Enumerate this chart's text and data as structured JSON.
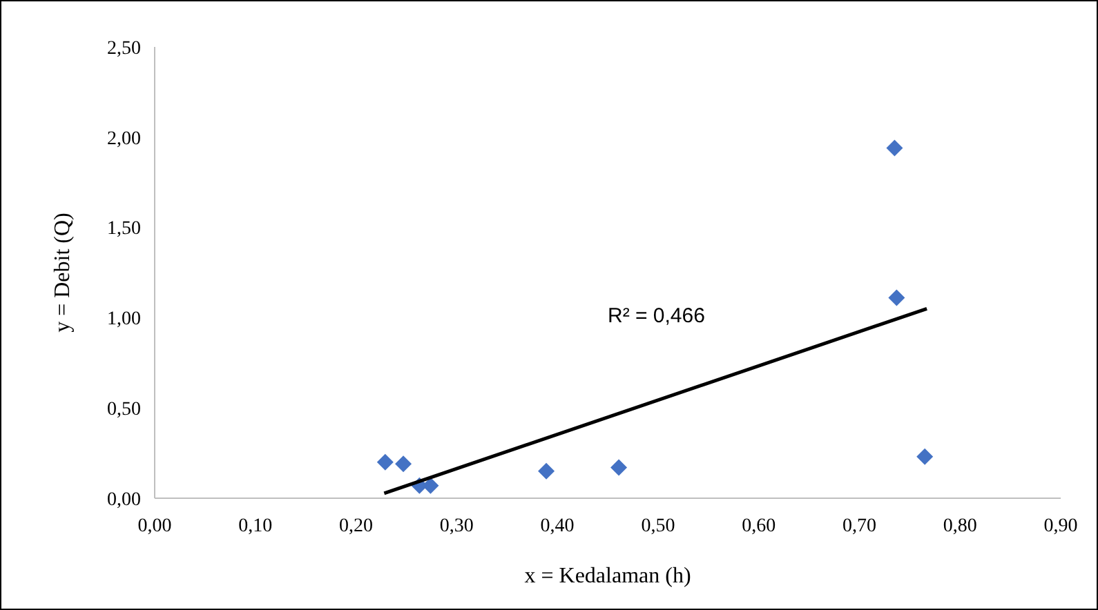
{
  "chart_data": {
    "type": "scatter",
    "xlabel": "x = Kedalaman (h)",
    "ylabel": "y = Debit (Q)",
    "marker": "diamond",
    "grid": false,
    "xlim": [
      0,
      0.9
    ],
    "ylim": [
      0,
      2.5
    ],
    "xticks": [
      {
        "value": 0,
        "label": "0,00"
      },
      {
        "value": 0.1,
        "label": "0,10"
      },
      {
        "value": 0.2,
        "label": "0,20"
      },
      {
        "value": 0.3,
        "label": "0,30"
      },
      {
        "value": 0.4,
        "label": "0,40"
      },
      {
        "value": 0.5,
        "label": "0,50"
      },
      {
        "value": 0.6,
        "label": "0,60"
      },
      {
        "value": 0.7,
        "label": "0,70"
      },
      {
        "value": 0.8,
        "label": "0,80"
      },
      {
        "value": 0.9,
        "label": "0,90"
      }
    ],
    "yticks": [
      {
        "value": 0,
        "label": "0,00"
      },
      {
        "value": 0.5,
        "label": "0,50"
      },
      {
        "value": 1,
        "label": "1,00"
      },
      {
        "value": 1.5,
        "label": "1,50"
      },
      {
        "value": 2,
        "label": "2,00"
      },
      {
        "value": 2.5,
        "label": "2,50"
      }
    ],
    "annotations": [
      "R² = 0,466"
    ],
    "series": [
      {
        "color": "#4472c4",
        "x": [
          0.229,
          0.247,
          0.263,
          0.274,
          0.389,
          0.461,
          0.735,
          0.737,
          0.765
        ],
        "values": [
          0.2,
          0.19,
          0.07,
          0.07,
          0.15,
          0.17,
          1.94,
          1.11,
          0.23
        ]
      },
      {
        "type": "line",
        "color": "#000000",
        "marker": "none",
        "x": [
          0.228,
          0.767
        ],
        "values": [
          0.027,
          1.05
        ]
      }
    ]
  }
}
